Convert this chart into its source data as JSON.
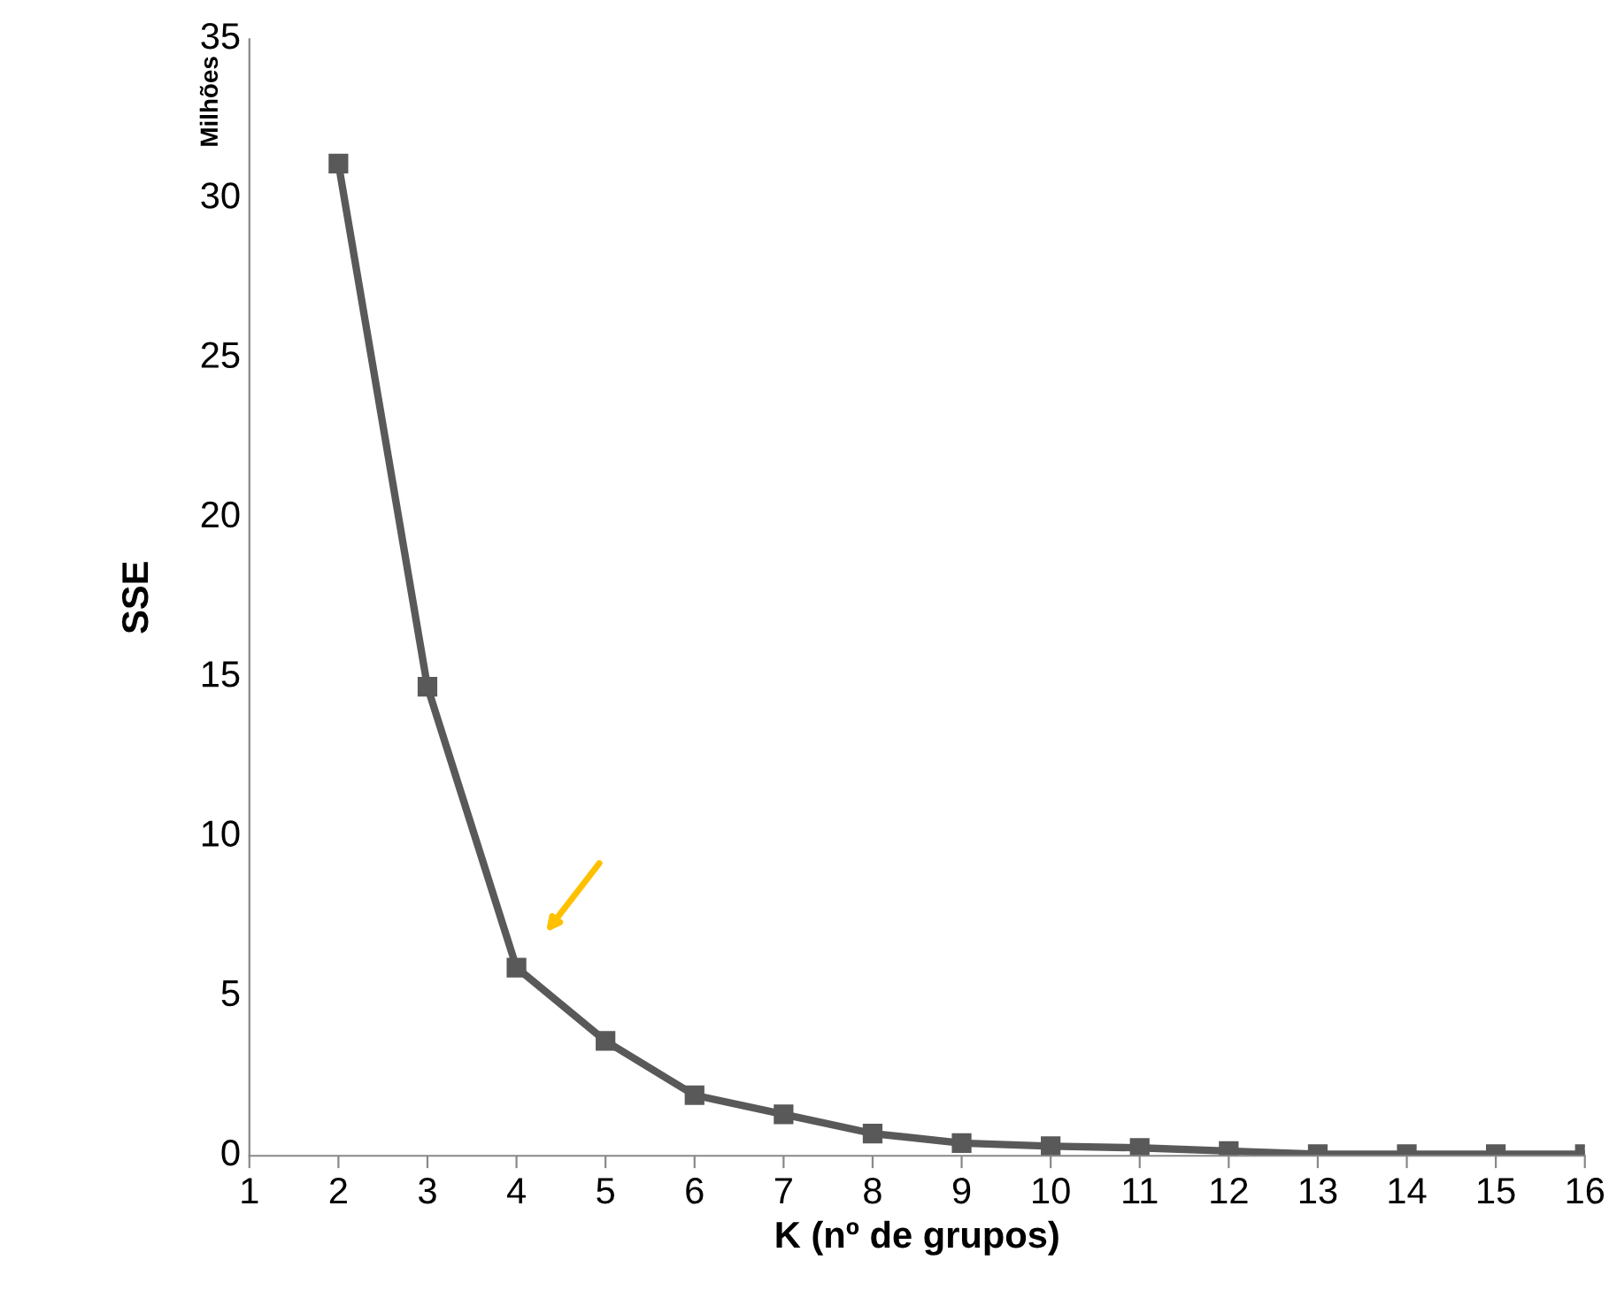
{
  "chart_data": {
    "type": "line",
    "xlabel": "K (nº de grupos)",
    "ylabel": "SSE",
    "x": [
      2,
      3,
      4,
      5,
      6,
      7,
      8,
      9,
      10,
      11,
      12,
      13,
      14,
      15,
      16
    ],
    "series": [
      {
        "color": "#595959",
        "values": [
          31.1,
          14.7,
          5.9,
          3.6,
          1.9,
          1.3,
          0.7,
          0.4,
          0.3,
          0.25,
          0.15,
          0.05,
          0.05,
          0.05,
          0.05
        ]
      }
    ],
    "marker": "square",
    "line_style": "solid",
    "grid": false,
    "xlim": [
      1,
      16
    ],
    "xticks": [
      1,
      2,
      3,
      4,
      5,
      6,
      7,
      8,
      9,
      10,
      11,
      12,
      13,
      14,
      15,
      16
    ],
    "ylim": [
      0,
      35
    ],
    "yticks": [
      0,
      5,
      10,
      15,
      20,
      25,
      30,
      35
    ],
    "annotations": [
      "Milhões"
    ]
  }
}
